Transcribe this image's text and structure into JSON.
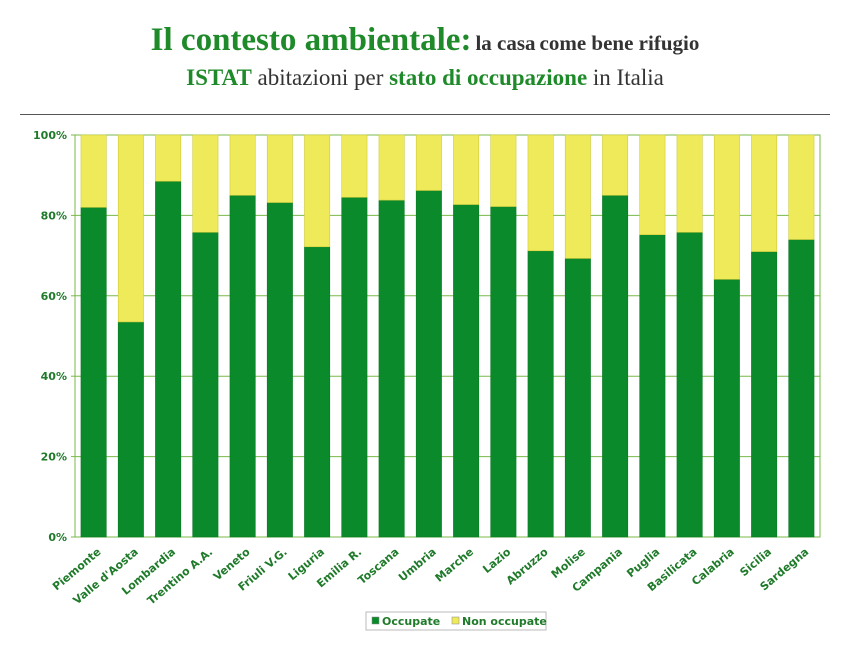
{
  "header": {
    "title_main": "Il contesto ambientale:",
    "title_sub_1": "la casa",
    "title_sub_2": "come bene rifugio",
    "line2_a": "ISTAT",
    "line2_b": "abitazioni per",
    "line2_c": "stato di occupazione",
    "line2_d": "in Italia"
  },
  "colors": {
    "occupied": "#0a8a2a",
    "not_occupied": "#eeea5a",
    "plot_border": "#7ab84a",
    "grid": "#7ab84a",
    "accent_text": "#1f8a2a"
  },
  "chart_data": {
    "type": "bar",
    "stacked": true,
    "percent": true,
    "categories": [
      "Piemonte",
      "Valle d'Aosta",
      "Lombardia",
      "Trentino A.A.",
      "Veneto",
      "Friuli V.G.",
      "Liguria",
      "Emilia R.",
      "Toscana",
      "Umbria",
      "Marche",
      "Lazio",
      "Abruzzo",
      "Molise",
      "Campania",
      "Puglia",
      "Basilicata",
      "Calabria",
      "Sicilia",
      "Sardegna"
    ],
    "series": [
      {
        "name": "Occupate",
        "values": [
          82,
          53.5,
          88.5,
          75.8,
          85,
          83.2,
          72.2,
          84.5,
          83.8,
          86.2,
          82.7,
          82.2,
          71.2,
          69.3,
          85,
          75.2,
          75.8,
          64.1,
          71,
          74
        ]
      },
      {
        "name": "Non occupate",
        "values": [
          18,
          46.5,
          11.5,
          24.2,
          15,
          16.8,
          27.8,
          15.5,
          16.2,
          13.8,
          17.3,
          17.8,
          28.8,
          30.7,
          15,
          24.8,
          24.2,
          35.9,
          29,
          26
        ]
      }
    ],
    "yticks": [
      "0%",
      "20%",
      "40%",
      "60%",
      "80%",
      "100%"
    ],
    "ylim": [
      0,
      100
    ],
    "grid": true,
    "legend": "bottom"
  }
}
